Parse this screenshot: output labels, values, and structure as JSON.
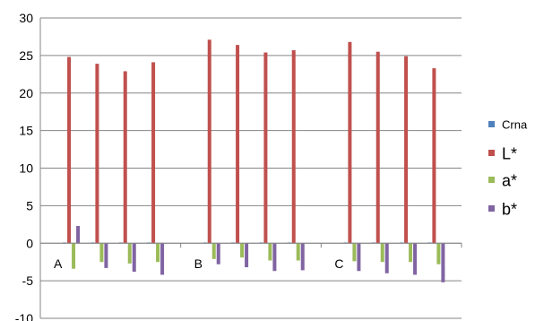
{
  "chart_data": {
    "type": "bar",
    "categories": [
      "A",
      "B",
      "C"
    ],
    "groups_per_category": 4,
    "ylim": [
      -10,
      30
    ],
    "yticks": [
      -10,
      -5,
      0,
      5,
      10,
      15,
      20,
      25,
      30
    ],
    "grid": true,
    "legend_position": "right",
    "series": [
      {
        "name": "Crna",
        "color": "#4F81BD",
        "values": [
          [
            0.1,
            0.1,
            0.1,
            0.1
          ],
          [
            0.1,
            0.1,
            0.1,
            0.1
          ],
          [
            0.1,
            0.1,
            0.1,
            0.1
          ]
        ]
      },
      {
        "name": "L*",
        "color": "#C0504D",
        "values": [
          [
            24.8,
            23.9,
            22.9,
            24.1
          ],
          [
            27.1,
            26.4,
            25.4,
            25.7
          ],
          [
            26.8,
            25.5,
            24.9,
            23.3
          ]
        ]
      },
      {
        "name": "a*",
        "color": "#9BBB59",
        "values": [
          [
            -3.4,
            -2.5,
            -2.7,
            -2.5
          ],
          [
            -2.1,
            -1.9,
            -2.3,
            -2.3
          ],
          [
            -2.4,
            -2.5,
            -2.5,
            -2.8
          ]
        ]
      },
      {
        "name": "b*",
        "color": "#8064A2",
        "values": [
          [
            2.3,
            -3.3,
            -3.8,
            -4.2
          ],
          [
            -2.8,
            -3.2,
            -3.7,
            -3.6
          ],
          [
            -3.7,
            -4.0,
            -4.2,
            -5.2
          ]
        ]
      }
    ]
  }
}
